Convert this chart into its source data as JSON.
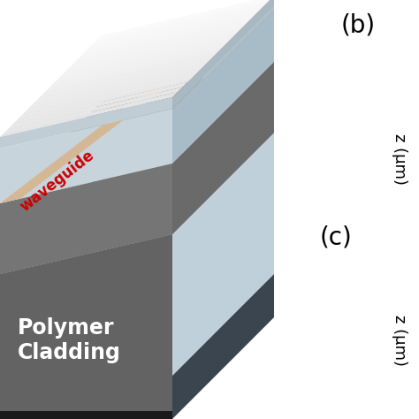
{
  "title_b": "(b)",
  "title_c": "(c)",
  "z_label": "z (μm)",
  "polymer_label": "Polymer\nCladding",
  "waveguide_label": "waveguide",
  "bg_color": "#ffffff",
  "cover_top_color_start": "#f5f5f5",
  "cover_top_color_end": "#d8d8d8",
  "cover_bottom_color": "#c8ced4",
  "cover_right_color": "#b0bac2",
  "mid_top_color": "#888888",
  "mid_front_color": "#787878",
  "bot_top_color": "#707070",
  "bot_front_color": "#696969",
  "bot_bottom_color": "#1a1a1a",
  "clad_right_top_color": "#c8d8e4",
  "clad_right_bot_color": "#b0c0cc",
  "clad_dark_edge": "#3a4550",
  "waveguide_strip_color": "#d4b896",
  "waveguide_text_color": "#cc0000",
  "polymer_text_color": "#ffffff"
}
